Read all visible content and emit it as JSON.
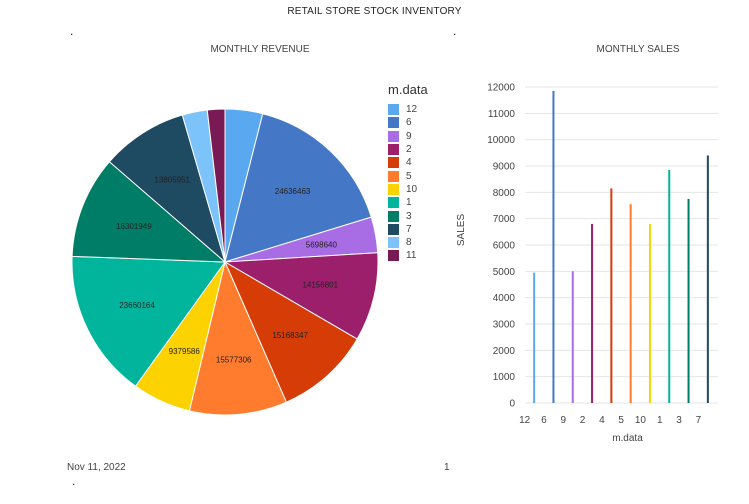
{
  "page_title": "RETAIL STORE STOCK INVENTORY",
  "footer": {
    "date": "Nov 11, 2022",
    "page": "1"
  },
  "dots": {
    "left": ".",
    "right": ".",
    "bottom": "."
  },
  "chart_data": [
    {
      "type": "pie",
      "title": "MONTHLY REVENUE",
      "legend_title": "m.data",
      "legend_position": "right",
      "slices": [
        {
          "label": "12",
          "value": 6000000,
          "data_label": "",
          "color": "#5aa9f0"
        },
        {
          "label": "6",
          "value": 24636463,
          "data_label": "24636463",
          "color": "#4478c6"
        },
        {
          "label": "9",
          "value": 5698640,
          "data_label": "5698640",
          "color": "#a86ce4"
        },
        {
          "label": "2",
          "value": 14156801,
          "data_label": "14156801",
          "color": "#9c1f6b"
        },
        {
          "label": "4",
          "value": 15168347,
          "data_label": "15168347",
          "color": "#d63d06"
        },
        {
          "label": "5",
          "value": 15577306,
          "data_label": "15577306",
          "color": "#ff7b2e"
        },
        {
          "label": "10",
          "value": 9379586,
          "data_label": "9379586",
          "color": "#fcd300"
        },
        {
          "label": "1",
          "value": 23660164,
          "data_label": "23660164",
          "color": "#00b59b"
        },
        {
          "label": "3",
          "value": 16301949,
          "data_label": "16301949",
          "color": "#007d67"
        },
        {
          "label": "7",
          "value": 13805951,
          "data_label": "13805951",
          "color": "#1e4a62"
        },
        {
          "label": "8",
          "value": 4000000,
          "data_label": "",
          "color": "#7cc3fb"
        },
        {
          "label": "11",
          "value": 2800000,
          "data_label": "",
          "color": "#7a1a54"
        }
      ]
    },
    {
      "type": "bar",
      "title": "MONTHLY SALES",
      "xlabel": "m.data",
      "ylabel": "SALES",
      "ylim": [
        0,
        12000
      ],
      "yticks": [
        "0",
        "1000",
        "2000",
        "3000",
        "4000",
        "5000",
        "6000",
        "7000",
        "8000",
        "9000",
        "10000",
        "11000",
        "12000"
      ],
      "grid": true,
      "categories": [
        "12",
        "6",
        "9",
        "2",
        "4",
        "5",
        "10",
        "1",
        "3",
        "7"
      ],
      "values": [
        4950,
        11850,
        5000,
        6800,
        8150,
        7550,
        6800,
        8850,
        7750,
        9400
      ],
      "colors": [
        "#5aa9f0",
        "#4478c6",
        "#a86ce4",
        "#9c1f6b",
        "#d63d06",
        "#ff7b2e",
        "#fcd300",
        "#00b59b",
        "#007d67",
        "#1e4a62"
      ]
    }
  ]
}
